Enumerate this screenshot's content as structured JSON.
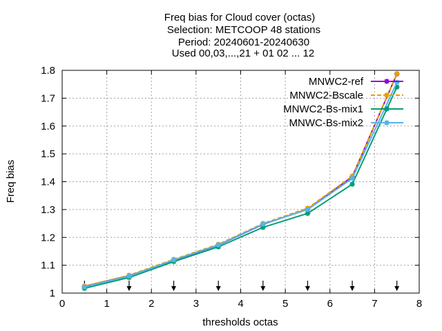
{
  "chart_data": {
    "type": "line",
    "title_lines": [
      "Freq bias  for Cloud cover (octas)",
      "Selection: METCOOP     48 stations",
      "Period: 20240601-20240630",
      "Used 00,03,...,21 + 01 02 ... 12"
    ],
    "xlabel": "thresholds octas",
    "ylabel": "Freq bias",
    "xlim": [
      0,
      8
    ],
    "ylim": [
      1,
      1.8
    ],
    "xticks": [
      "0",
      "1",
      "2",
      "3",
      "4",
      "5",
      "6",
      "7",
      "8"
    ],
    "yticks": [
      "1",
      "1.1",
      "1.2",
      "1.3",
      "1.4",
      "1.5",
      "1.6",
      "1.7",
      "1.8"
    ],
    "grid": true,
    "legend_position": "top-right",
    "arrow_x": [
      0.5,
      1.5,
      2.5,
      3.5,
      4.5,
      5.5,
      6.5,
      7.5
    ],
    "x": [
      0.5,
      1.5,
      2.5,
      3.5,
      4.5,
      5.5,
      6.5,
      7.5
    ],
    "series": [
      {
        "name": "MNWC2-ref",
        "color": "#9400d3",
        "values": [
          1.024,
          1.062,
          1.118,
          1.172,
          1.247,
          1.301,
          1.418,
          1.787
        ]
      },
      {
        "name": "MNWC2-Bscale",
        "color": "#e69f00",
        "values": [
          1.025,
          1.064,
          1.121,
          1.175,
          1.25,
          1.305,
          1.42,
          1.788
        ]
      },
      {
        "name": "MNWC2-Bs-mix1",
        "color": "#009e73",
        "values": [
          1.017,
          1.056,
          1.113,
          1.166,
          1.236,
          1.286,
          1.391,
          1.74
        ]
      },
      {
        "name": "MNWC-Bs-mix2",
        "color": "#56b4e9",
        "values": [
          1.022,
          1.061,
          1.119,
          1.173,
          1.248,
          1.3,
          1.412,
          1.757
        ]
      }
    ]
  }
}
